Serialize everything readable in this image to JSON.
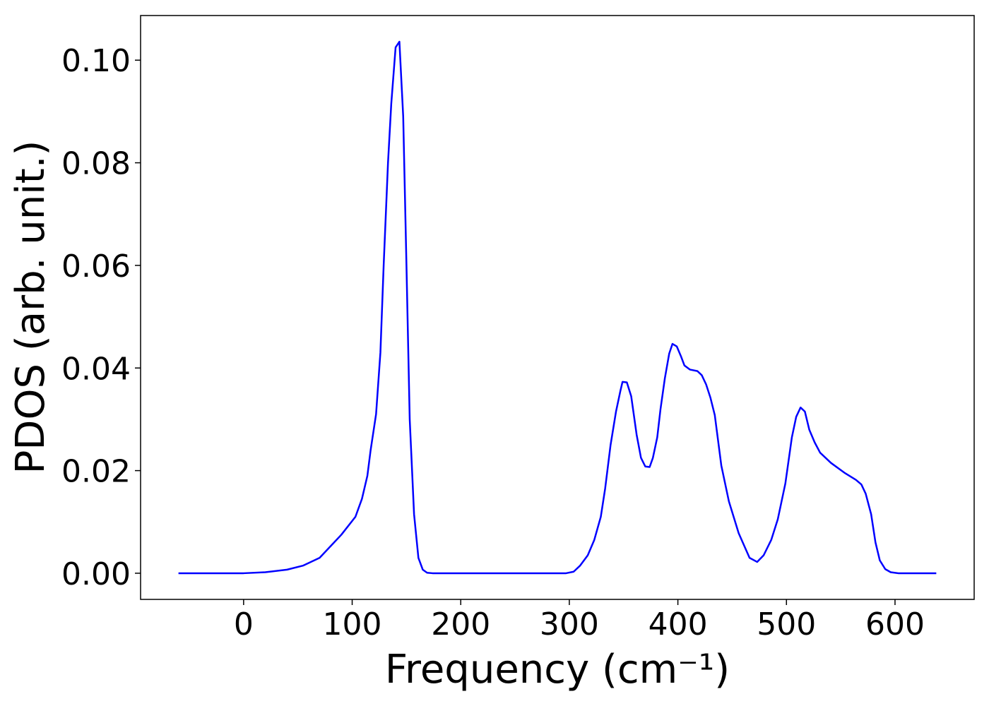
{
  "chart_data": {
    "type": "line",
    "xlabel": "Frequency (cm⁻¹)",
    "ylabel": "PDOS (arb. unit.)",
    "x": [
      -60,
      0,
      20,
      40,
      55,
      70,
      90,
      103,
      109,
      114,
      117,
      122,
      126,
      129,
      133,
      136,
      140,
      143.5,
      147,
      150,
      153,
      157,
      161,
      165,
      169,
      174,
      297,
      304,
      310,
      317,
      323,
      329,
      333,
      338,
      343,
      347,
      349,
      353,
      357,
      362,
      366,
      370,
      374,
      377,
      381,
      384,
      388,
      392,
      395,
      399,
      403,
      406,
      411,
      418,
      422,
      426,
      430,
      434,
      440,
      447,
      456,
      466,
      473,
      479,
      486,
      492,
      499,
      505,
      509,
      513,
      517,
      521,
      526,
      531,
      541,
      554,
      564,
      569,
      573,
      578,
      582,
      586,
      591,
      596,
      603,
      638
    ],
    "series": [
      {
        "name": "PDOS",
        "color": "#0000ff",
        "values": [
          0,
          0,
          0.0002,
          0.0007,
          0.0015,
          0.003,
          0.0075,
          0.011,
          0.0145,
          0.019,
          0.024,
          0.031,
          0.043,
          0.06,
          0.08,
          0.0915,
          0.1025,
          0.1036,
          0.089,
          0.06,
          0.03,
          0.0115,
          0.003,
          0.0007,
          0.0001,
          0,
          0,
          0.0003,
          0.0015,
          0.0035,
          0.0065,
          0.011,
          0.0165,
          0.025,
          0.0315,
          0.0355,
          0.0373,
          0.0372,
          0.0345,
          0.027,
          0.0225,
          0.0208,
          0.0207,
          0.0225,
          0.0265,
          0.032,
          0.038,
          0.0428,
          0.0447,
          0.0442,
          0.0422,
          0.0405,
          0.0397,
          0.0394,
          0.0386,
          0.0368,
          0.0342,
          0.0308,
          0.021,
          0.014,
          0.0078,
          0.003,
          0.0022,
          0.0035,
          0.0065,
          0.0105,
          0.0175,
          0.0265,
          0.0305,
          0.0323,
          0.0315,
          0.028,
          0.0255,
          0.0235,
          0.0215,
          0.0195,
          0.0182,
          0.0173,
          0.0155,
          0.0115,
          0.006,
          0.0025,
          0.0008,
          0.0002,
          0,
          0
        ]
      }
    ],
    "xlim": [
      -94.9,
      672.9
    ],
    "ylim": [
      -0.0051,
      0.1087
    ],
    "xticks": [
      0,
      100,
      200,
      300,
      400,
      500,
      600
    ],
    "yticks": [
      {
        "value": 0,
        "label": "0.00"
      },
      {
        "value": 0.02,
        "label": "0.02"
      },
      {
        "value": 0.04,
        "label": "0.04"
      },
      {
        "value": 0.06,
        "label": "0.06"
      },
      {
        "value": 0.08,
        "label": "0.08"
      },
      {
        "value": 0.1,
        "label": "0.10"
      }
    ],
    "grid": false
  }
}
